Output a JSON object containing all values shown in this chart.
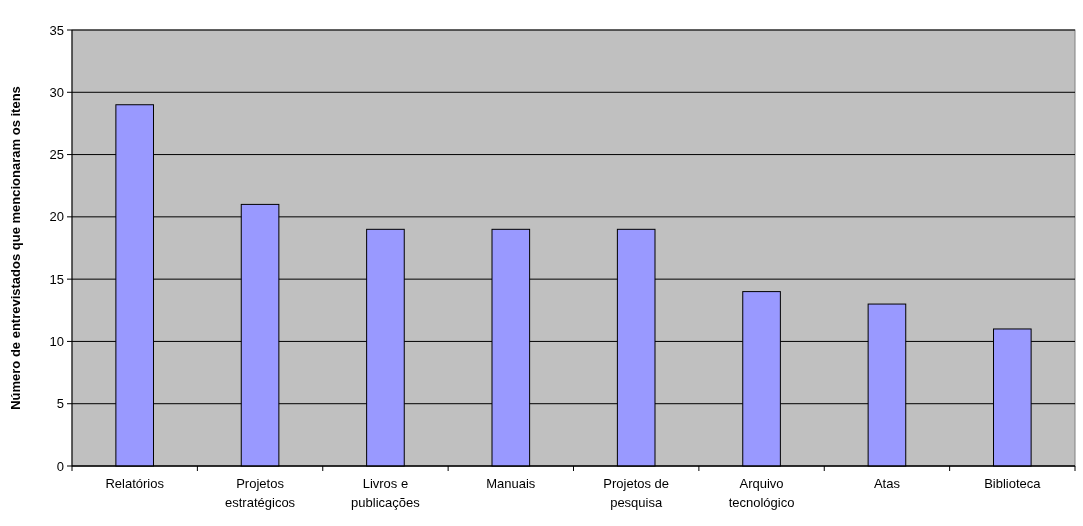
{
  "chart_data": {
    "type": "bar",
    "ylabel": "Número de entrevistados que mencionaram os itens",
    "categories": [
      "Relatórios",
      "Projetos estratégicos",
      "Livros e publicações",
      "Manuais",
      "Projetos de pesquisa",
      "Arquivo tecnológico",
      "Atas",
      "Biblioteca"
    ],
    "values": [
      29,
      21,
      19,
      19,
      19,
      14,
      13,
      11
    ],
    "color": "#9999ff",
    "ylim": [
      0,
      35
    ],
    "yticks": [
      0,
      5,
      10,
      15,
      20,
      25,
      30,
      35
    ],
    "grid": "y"
  }
}
